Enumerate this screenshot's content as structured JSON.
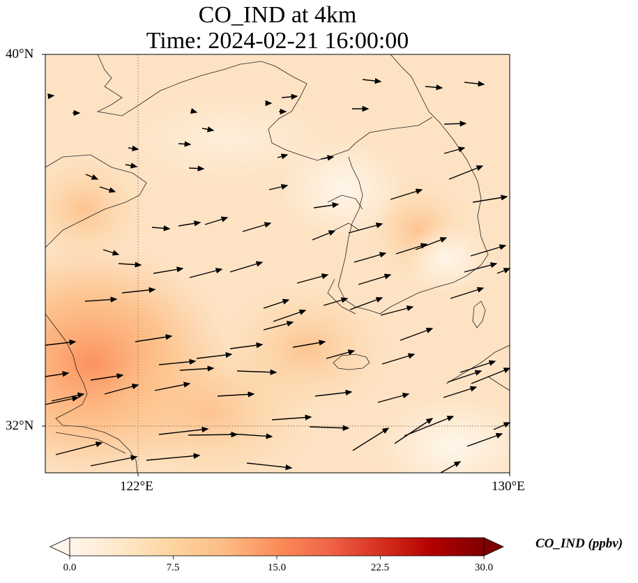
{
  "title": {
    "line1": "CO_IND at 4km",
    "line2": "Time: 2024-02-21 16:00:00"
  },
  "axes": {
    "lat_labels": [
      "40°N",
      "32°N"
    ],
    "lon_labels": [
      "122°E",
      "130°E"
    ],
    "gridlines": {
      "lon": 122,
      "lat": 32,
      "style": "dotted"
    }
  },
  "map": {
    "extent": {
      "lon": [
        120,
        130
      ],
      "lat": [
        31,
        40
      ]
    },
    "field": "CO_IND",
    "colormap": "OrRd",
    "field_peak_region": "southwest",
    "vectors": "wind",
    "background_color": "#fde3c4"
  },
  "colorbar": {
    "title": "CO_IND (ppbv)",
    "ticks": [
      "0.0",
      "7.5",
      "15.0",
      "22.5",
      "30.0"
    ],
    "range": [
      0,
      30
    ],
    "extend": "both",
    "colors": [
      "#fff7ec",
      "#fee8c8",
      "#fdd49e",
      "#fdbb84",
      "#fc8d59",
      "#ef6548",
      "#d7301f",
      "#b30000",
      "#7f0000"
    ]
  }
}
